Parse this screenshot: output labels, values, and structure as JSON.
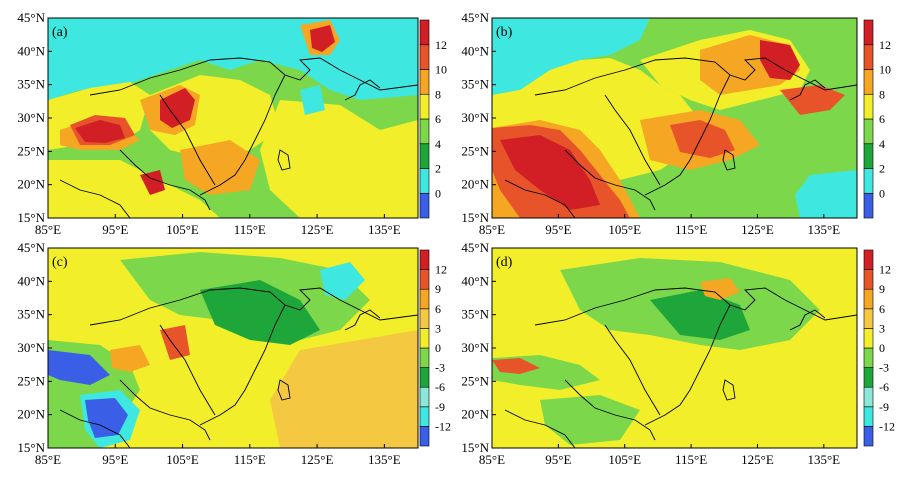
{
  "figure": {
    "panels": [
      {
        "id": "a",
        "label": "(a)",
        "lat_ticks": [
          "15°N",
          "20°N",
          "25°N",
          "30°N",
          "35°N",
          "40°N",
          "45°N"
        ],
        "lon_ticks": [
          "85°E",
          "95°E",
          "105°E",
          "115°E",
          "125°E",
          "135°E"
        ],
        "colorbar": {
          "labels": [
            "0",
            "2",
            "4",
            "6",
            "8",
            "10",
            "12"
          ],
          "colors": [
            "#3a5fe6",
            "#3ee8e0",
            "#1fa63a",
            "#7cd84a",
            "#f2ef2a",
            "#f5a623",
            "#e8542a",
            "#d11f25"
          ]
        }
      },
      {
        "id": "b",
        "label": "(b)",
        "lat_ticks": [
          "15°N",
          "20°N",
          "25°N",
          "30°N",
          "35°N",
          "40°N",
          "45°N"
        ],
        "lon_ticks": [
          "85°E",
          "95°E",
          "105°E",
          "115°E",
          "125°E",
          "135°E"
        ],
        "colorbar": {
          "labels": [
            "0",
            "2",
            "4",
            "6",
            "8",
            "10",
            "12"
          ],
          "colors": [
            "#3a5fe6",
            "#3ee8e0",
            "#1fa63a",
            "#7cd84a",
            "#f2ef2a",
            "#f5a623",
            "#e8542a",
            "#d11f25"
          ]
        }
      },
      {
        "id": "c",
        "label": "(c)",
        "lat_ticks": [
          "15°N",
          "20°N",
          "25°N",
          "30°N",
          "35°N",
          "40°N",
          "45°N"
        ],
        "lon_ticks": [
          "85°E",
          "95°E",
          "105°E",
          "115°E",
          "125°E",
          "135°E"
        ],
        "colorbar": {
          "labels": [
            "-12",
            "-9",
            "-6",
            "-3",
            "0",
            "3",
            "6",
            "9",
            "12"
          ],
          "colors": [
            "#3a5fe6",
            "#3ee8e0",
            "#8ce7d8",
            "#1fa63a",
            "#7cd84a",
            "#f2ef2a",
            "#f5c842",
            "#f5a623",
            "#e8542a",
            "#d11f25"
          ]
        }
      },
      {
        "id": "d",
        "label": "(d)",
        "lat_ticks": [
          "15°N",
          "20°N",
          "25°N",
          "30°N",
          "35°N",
          "40°N",
          "45°N"
        ],
        "lon_ticks": [
          "85°E",
          "95°E",
          "105°E",
          "115°E",
          "125°E",
          "135°E"
        ],
        "colorbar": {
          "labels": [
            "-12",
            "-9",
            "-6",
            "-3",
            "0",
            "3",
            "6",
            "9",
            "12"
          ],
          "colors": [
            "#3a5fe6",
            "#3ee8e0",
            "#8ce7d8",
            "#1fa63a",
            "#7cd84a",
            "#f2ef2a",
            "#f5c842",
            "#f5a623",
            "#e8542a",
            "#d11f25"
          ]
        }
      }
    ]
  }
}
